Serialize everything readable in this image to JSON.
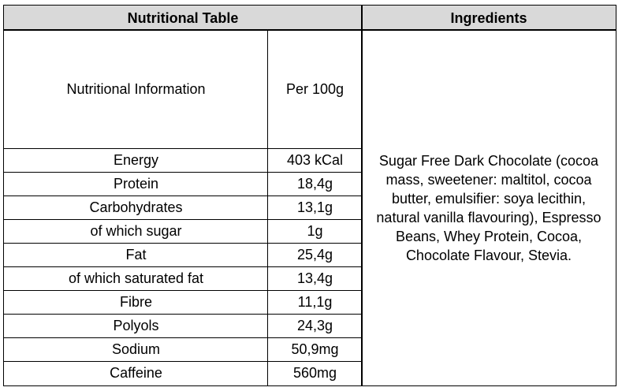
{
  "headers": {
    "nutritional_table": "Nutritional Table",
    "ingredients": "Ingredients"
  },
  "nutrition": {
    "column_label": "Nutritional Information",
    "column_value": "Per 100g",
    "rows": [
      {
        "name": "Energy",
        "value": "403 kCal"
      },
      {
        "name": "Protein",
        "value": "18,4g"
      },
      {
        "name": "Carbohydrates",
        "value": "13,1g"
      },
      {
        "name": "of which sugar",
        "value": "1g"
      },
      {
        "name": "Fat",
        "value": "25,4g"
      },
      {
        "name": "of which saturated fat",
        "value": "13,4g"
      },
      {
        "name": "Fibre",
        "value": "11,1g"
      },
      {
        "name": "Polyols",
        "value": "24,3g"
      },
      {
        "name": "Sodium",
        "value": "50,9mg"
      },
      {
        "name": "Caffeine",
        "value": "560mg"
      }
    ]
  },
  "ingredients": {
    "lines": [
      "Sugar Free Dark Chocolate (cocoa",
      "mass, sweetener: maltitol, cocoa",
      "butter, emulsifier: soya  lecithin,",
      "natural vanilla flavouring), Espresso",
      "Beans,  Whey Protein, Cocoa,",
      "Chocolate Flavour, Stevia."
    ]
  }
}
